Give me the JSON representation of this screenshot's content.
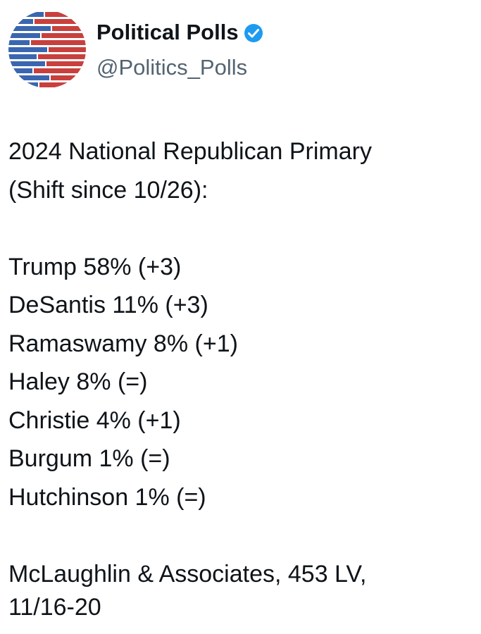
{
  "author": {
    "name": "Political Polls",
    "handle": "@Politics_Polls"
  },
  "tweet": {
    "heading": [
      "2024 National Republican Primary",
      "(Shift since 10/26):"
    ],
    "results": [
      "Trump 58% (+3)",
      "DeSantis 11% (+3)",
      "Ramaswamy 8% (+1)",
      "Haley 8% (=)",
      "Christie 4% (+1)",
      "Burgum 1% (=)",
      "Hutchinson 1% (=)"
    ],
    "source": [
      "McLaughlin & Associates, 453 LV,",
      "11/16-20"
    ]
  }
}
